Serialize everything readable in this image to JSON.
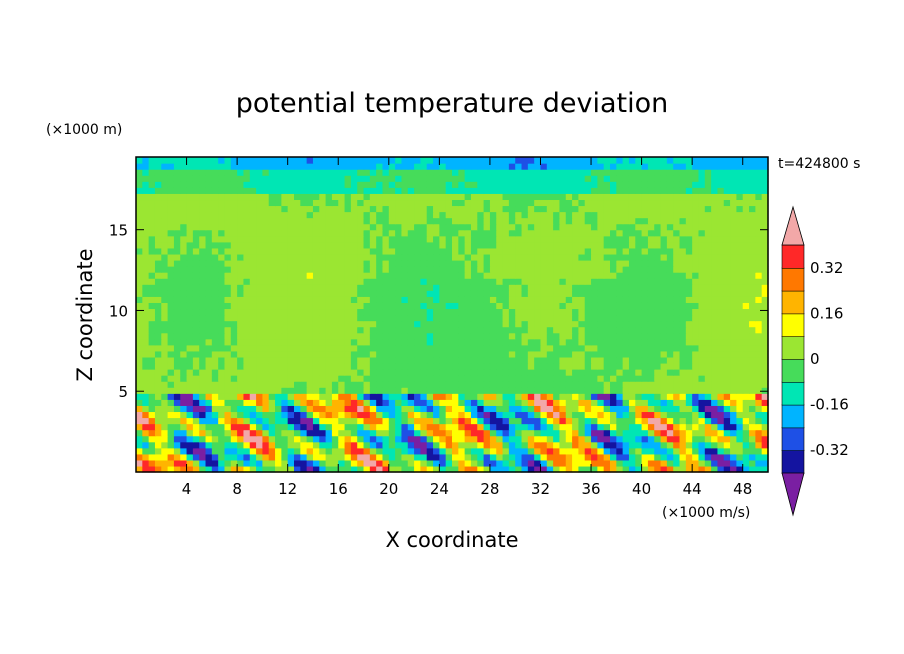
{
  "chart_data": {
    "type": "heatmap",
    "title": "potential temperature deviation",
    "xlabel": "X coordinate",
    "ylabel": "Z coordinate",
    "x_unit": "(×1000 m/s)",
    "y_unit": "(×1000 m)",
    "time_label": "t=424800 s",
    "xlim": [
      0,
      50
    ],
    "ylim": [
      0,
      19.5
    ],
    "x_ticks": [
      4,
      8,
      12,
      16,
      20,
      24,
      28,
      32,
      36,
      40,
      44,
      48
    ],
    "y_ticks": [
      5,
      10,
      15
    ],
    "colorbar": {
      "levels": [
        -0.4,
        -0.32,
        -0.24,
        -0.16,
        -0.08,
        0,
        0.08,
        0.16,
        0.24,
        0.32,
        0.4
      ],
      "tick_labels": [
        "0.32",
        "0.16",
        "0",
        "-0.16",
        "-0.32"
      ],
      "tick_values": [
        0.32,
        0.16,
        0,
        -0.16,
        -0.32
      ],
      "colors": [
        "#7a1fa2",
        "#1414a0",
        "#1e50e6",
        "#00b4ff",
        "#00e6b4",
        "#46dc5a",
        "#9be632",
        "#ffff00",
        "#ffb400",
        "#ff7800",
        "#ff2828",
        "#f2a8a8"
      ],
      "extend": "both"
    },
    "field_description": {
      "upper_layer_z_range_km": [
        5,
        19.5
      ],
      "upper_layer_dominant_value": 0.0,
      "lower_layer_z_range_km": [
        0,
        5
      ],
      "lower_layer_value_range": [
        -0.4,
        0.4
      ]
    }
  }
}
